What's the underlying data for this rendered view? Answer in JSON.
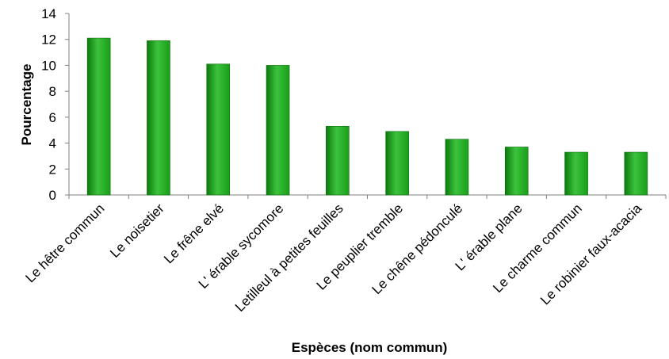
{
  "chart_data": {
    "type": "bar",
    "title": "",
    "xlabel": "Espèces (nom commun)",
    "ylabel": "Pourcentage",
    "ylim": [
      0,
      14
    ],
    "yticks": [
      0,
      2,
      4,
      6,
      8,
      10,
      12,
      14
    ],
    "grid": false,
    "legend": "none",
    "categories": [
      "Le hêtre commun",
      "Le noisetier",
      "Le frêne elvé",
      "L' érable sycomore",
      "Letilleul à petites feuilles",
      "Le peuplier tremble",
      "Le chêne pédonculé",
      "L' érable plane",
      "Le charme commun",
      "Le robinier faux-acacia"
    ],
    "values": [
      12.1,
      11.9,
      10.1,
      10.0,
      5.3,
      4.9,
      4.3,
      3.7,
      3.3,
      3.3
    ],
    "colors": {
      "bar": "#1a9e1a",
      "bar_light": "#3cc23c",
      "bar_dark": "#0c7a0c",
      "axis": "#808080"
    }
  }
}
